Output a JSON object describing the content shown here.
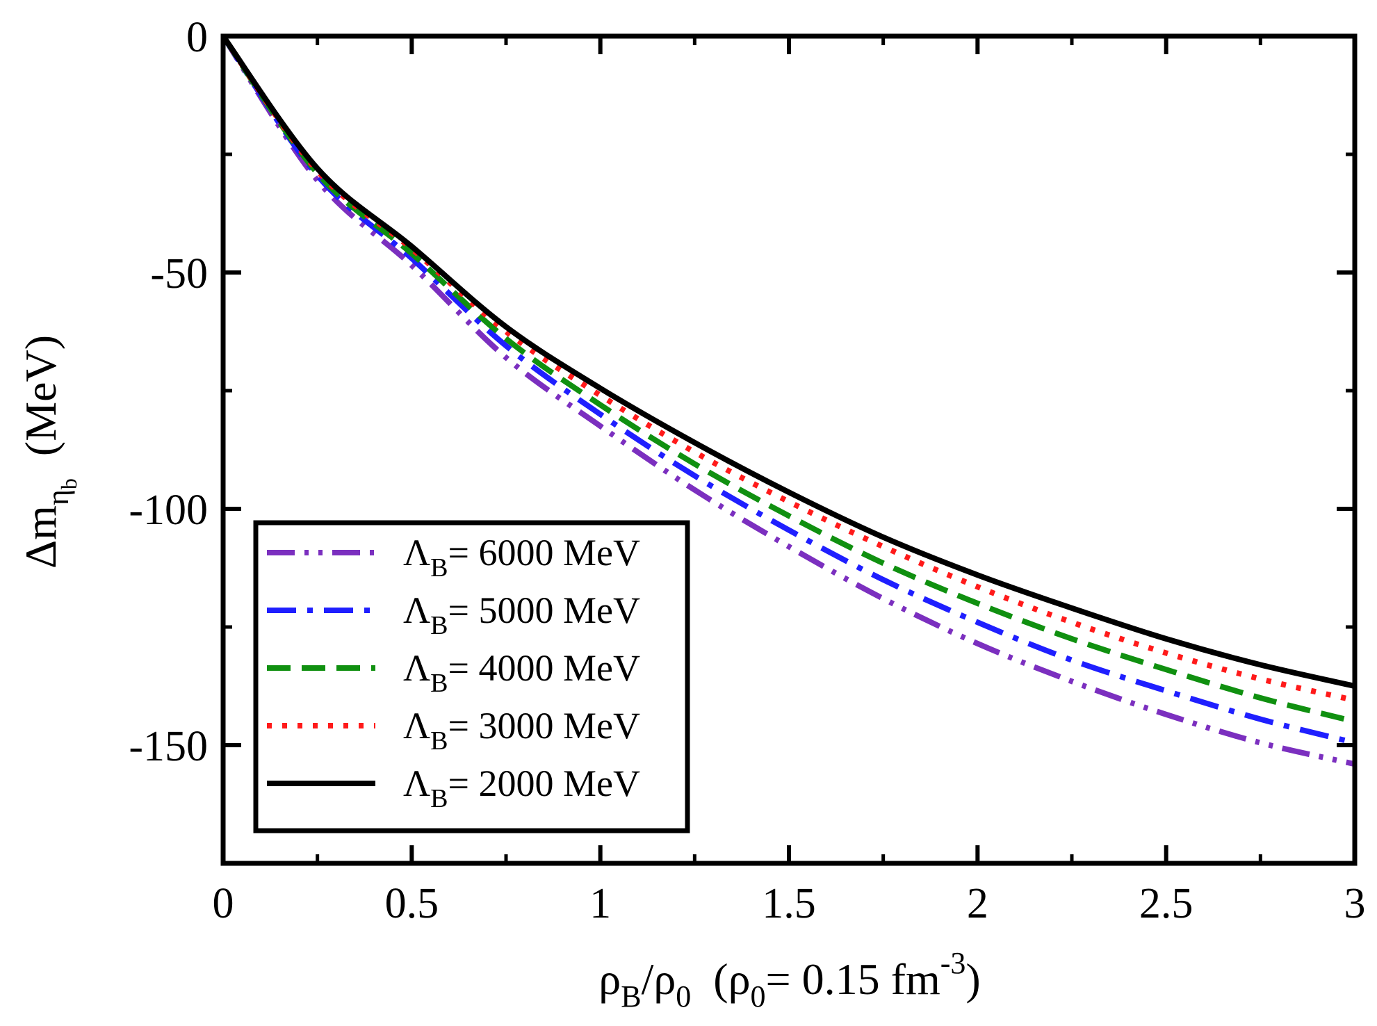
{
  "chart_data": {
    "type": "line",
    "title": "",
    "xlabel": {
      "main": "ρ",
      "sub1": "B",
      "slash": "/ρ",
      "sub2": "0",
      "paren_open": "  (ρ",
      "paren_sub": "0",
      "paren_rest": "= 0.15 fm",
      "sup": "-3",
      "paren_close": ")"
    },
    "ylabel": {
      "main": "Δm",
      "sub": "η",
      "subsub": "b",
      "unit": "  (MeV)"
    },
    "xlim": [
      0,
      3
    ],
    "ylim": [
      -175,
      0
    ],
    "xticks": [
      0,
      0.5,
      1,
      1.5,
      2,
      2.5,
      3
    ],
    "xtick_labels": [
      "0",
      "0.5",
      "1",
      "1.5",
      "2",
      "2.5",
      "3"
    ],
    "yticks": [
      0,
      -50,
      -100,
      -150
    ],
    "ytick_labels": [
      "0",
      "-50",
      "-100",
      "-150"
    ],
    "x": [
      0,
      0.25,
      0.5,
      0.75,
      1,
      1.25,
      1.5,
      1.75,
      2,
      2.25,
      2.5,
      2.75,
      3
    ],
    "series": [
      {
        "name": "ΛB = 6000 MeV",
        "symbol": "Λ",
        "sub": "B",
        "text": "= 6000 MeV",
        "color": "#7b2fbf",
        "dash": "dashdotdot",
        "values": [
          0,
          -30.5,
          -48.5,
          -68,
          -82.5,
          -96,
          -108,
          -119,
          -128.5,
          -136.5,
          -143.5,
          -149.5,
          -154
        ]
      },
      {
        "name": "ΛB = 5000 MeV",
        "symbol": "Λ",
        "sub": "B",
        "text": "= 5000 MeV",
        "color": "#1f1fff",
        "dash": "dashdot",
        "values": [
          0,
          -29.5,
          -47,
          -65.5,
          -80,
          -93,
          -104.5,
          -115,
          -124,
          -132,
          -138.5,
          -144.5,
          -149.5
        ]
      },
      {
        "name": "ΛB = 4000 MeV",
        "symbol": "Λ",
        "sub": "B",
        "text": "= 4000 MeV",
        "color": "#109010",
        "dash": "dashed",
        "values": [
          0,
          -29,
          -46,
          -64,
          -78,
          -90.5,
          -101.5,
          -111.5,
          -120,
          -127.5,
          -134,
          -140,
          -145
        ]
      },
      {
        "name": "ΛB = 3000 MeV",
        "symbol": "Λ",
        "sub": "B",
        "text": "= 3000 MeV",
        "color": "#ff1a1a",
        "dash": "dotted",
        "values": [
          0,
          -28.5,
          -45,
          -62.5,
          -76,
          -88,
          -98.5,
          -108,
          -116.5,
          -124,
          -130.5,
          -136,
          -140.5
        ]
      },
      {
        "name": "ΛB = 2000 MeV",
        "symbol": "Λ",
        "sub": "B",
        "text": "= 2000 MeV",
        "color": "#000000",
        "dash": "solid",
        "values": [
          0,
          -28,
          -44.5,
          -61.5,
          -74.5,
          -86,
          -96.5,
          -106,
          -114,
          -121,
          -127.5,
          -133,
          -137.5
        ]
      }
    ],
    "legend_position": "bottom-left",
    "grid": false
  }
}
